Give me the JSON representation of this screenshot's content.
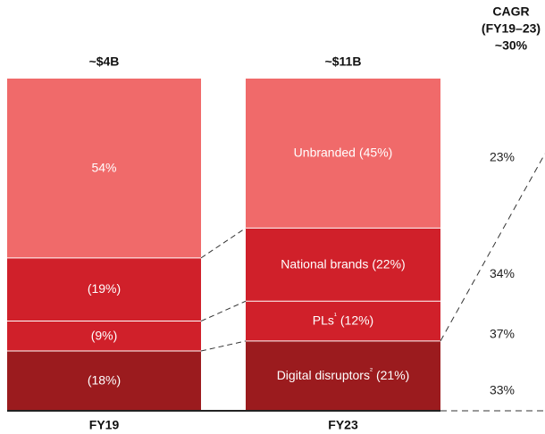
{
  "chart_data": {
    "type": "stacked_bar",
    "categories": [
      "FY19",
      "FY23"
    ],
    "total_labels": [
      "~$4B",
      "~$11B"
    ],
    "ylim": [
      0,
      100
    ],
    "cagr_title": [
      "CAGR",
      "(FY19–23)"
    ],
    "cagr_total": {
      "value": 30,
      "label": "~30%"
    },
    "series": [
      {
        "name": "Digital disruptors²",
        "color": "#9b1b1e",
        "values": [
          18,
          21
        ],
        "value_labels": [
          "(18%)",
          "(21%)"
        ],
        "cagr": 33,
        "cagr_label": "33%"
      },
      {
        "name": "PLs¹",
        "color": "#d0202a",
        "values": [
          9,
          12
        ],
        "value_labels": [
          "(9%)",
          "(12%)"
        ],
        "cagr": 37,
        "cagr_label": "37%"
      },
      {
        "name": "National brands",
        "color": "#d0202a",
        "values": [
          19,
          22
        ],
        "value_labels": [
          "(19%)",
          "(22%)"
        ],
        "cagr": 34,
        "cagr_label": "34%"
      },
      {
        "name": "Unbranded",
        "color": "#f06a6a",
        "values": [
          54,
          45
        ],
        "value_labels": [
          "54%",
          "(45%)"
        ],
        "cagr": 23,
        "cagr_label": "23%"
      }
    ]
  }
}
